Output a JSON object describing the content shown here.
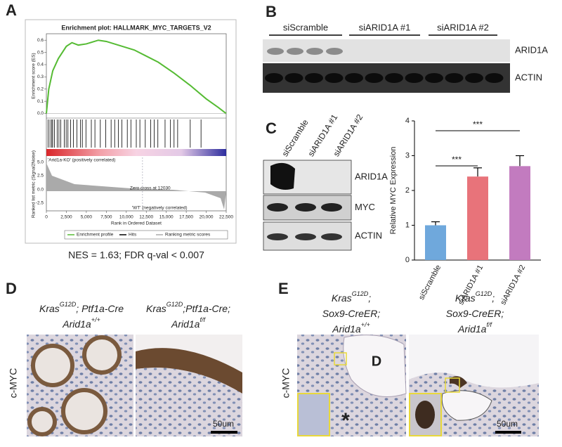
{
  "panel_labels": [
    "A",
    "B",
    "C",
    "D",
    "E"
  ],
  "gsea": {
    "lower_y_label": "Ranked list metric (Signal2Noise)",
    "lower_yticks": [
      "5.0",
      "2.5",
      "0.0",
      "-2.5"
    ],
    "pos_label": "'Arid1a-KO' (positively correlated)",
    "neg_label": "'WT' (negatively correlated)",
    "zero_cross": "Zero cross at 12030",
    "legend": [
      "Enrichment profile",
      "Hits",
      "Ranking metric scores"
    ],
    "summary": "NES = 1.63; FDR q-val < 0.007"
  },
  "blot_b": {
    "groups": [
      "siScramble",
      "siARID1A #1",
      "siARID1A #2"
    ],
    "rows": [
      "ARID1A",
      "ACTIN"
    ]
  },
  "blot_c": {
    "lanes": [
      "siScramble",
      "siARID1A #1",
      "siARID1A #2"
    ],
    "rows": [
      "ARID1A",
      "MYC",
      "ACTIN"
    ]
  },
  "panel_d": {
    "stain": "c-MYC",
    "scale": "50um",
    "titles": [
      [
        [
          "Kras",
          "G12D",
          "; Ptf1a-Cre"
        ],
        [
          "Arid1a",
          "+/+"
        ]
      ],
      [
        [
          "Kras",
          "G12D",
          ";Ptf1a-Cre;"
        ],
        [
          "Arid1a",
          "f/f"
        ]
      ]
    ]
  },
  "panel_e": {
    "stain": "c-MYC",
    "scale": "50um",
    "duct": "D",
    "asterisk": "*",
    "titles": [
      [
        [
          "Kras",
          "G12D",
          ";"
        ],
        [
          "Sox9-CreER;"
        ],
        [
          "Arid1a",
          "+/+"
        ]
      ],
      [
        [
          "Kras",
          "G12D",
          ";"
        ],
        [
          "Sox9-CreER;"
        ],
        [
          "Arid1a",
          "f/f"
        ]
      ]
    ]
  },
  "chart_data": [
    {
      "type": "line",
      "title": "Enrichment plot: HALLMARK_MYC_TARGETS_V2",
      "y_label": "Enrichment score (ES)",
      "x_label": "Rank in Ordered Dataset",
      "x": [
        0,
        300,
        800,
        1500,
        2500,
        3200,
        4000,
        5000,
        6500,
        7500,
        9000,
        11000,
        12500,
        14000,
        16000,
        18000,
        20000,
        21500,
        22500
      ],
      "series": [
        {
          "name": "Enrichment profile",
          "color": "#55bb33",
          "values": [
            0.0,
            0.2,
            0.35,
            0.45,
            0.55,
            0.58,
            0.56,
            0.57,
            0.6,
            0.59,
            0.56,
            0.52,
            0.47,
            0.42,
            0.33,
            0.23,
            0.12,
            0.05,
            0.0
          ]
        }
      ],
      "xlim": [
        0,
        22500
      ],
      "xticks": [
        0,
        {
          "value": 2500,
          "label": "2,500"
        },
        {
          "value": 5000,
          "label": "5,000"
        },
        {
          "value": 7500,
          "label": "7,500"
        },
        {
          "value": 10000,
          "label": "10,000"
        },
        {
          "value": 12500,
          "label": "12,500"
        },
        {
          "value": 15000,
          "label": "15,000"
        },
        {
          "value": 17500,
          "label": "17,500"
        },
        {
          "value": 20000,
          "label": "20,000"
        },
        {
          "value": 22500,
          "label": "22,500"
        }
      ],
      "ylim": [
        -0.02,
        0.63
      ],
      "yticks": [
        {
          "value": 0,
          "label": "0.0"
        },
        {
          "value": 0.1,
          "label": "0.1"
        },
        {
          "value": 0.2,
          "label": "0.2"
        },
        {
          "value": 0.3,
          "label": "0.3"
        },
        {
          "value": 0.4,
          "label": "0.4"
        },
        {
          "value": 0.5,
          "label": "0.5"
        },
        {
          "value": 0.6,
          "label": "0.6"
        }
      ]
    },
    {
      "type": "bar",
      "y_label": "Relative MYC Expression",
      "categories": [
        "siScramble",
        "siARID1A #1",
        "siARID1A #2"
      ],
      "values": [
        1.0,
        2.4,
        2.7
      ],
      "errors": [
        0.1,
        0.25,
        0.3
      ],
      "colors": [
        "#6fa8dc",
        "#e8737a",
        "#c27bbf"
      ],
      "significance": [
        "***",
        "***"
      ],
      "ylim": [
        0,
        4
      ],
      "yticks": [
        0,
        1,
        2,
        3,
        4
      ]
    }
  ]
}
